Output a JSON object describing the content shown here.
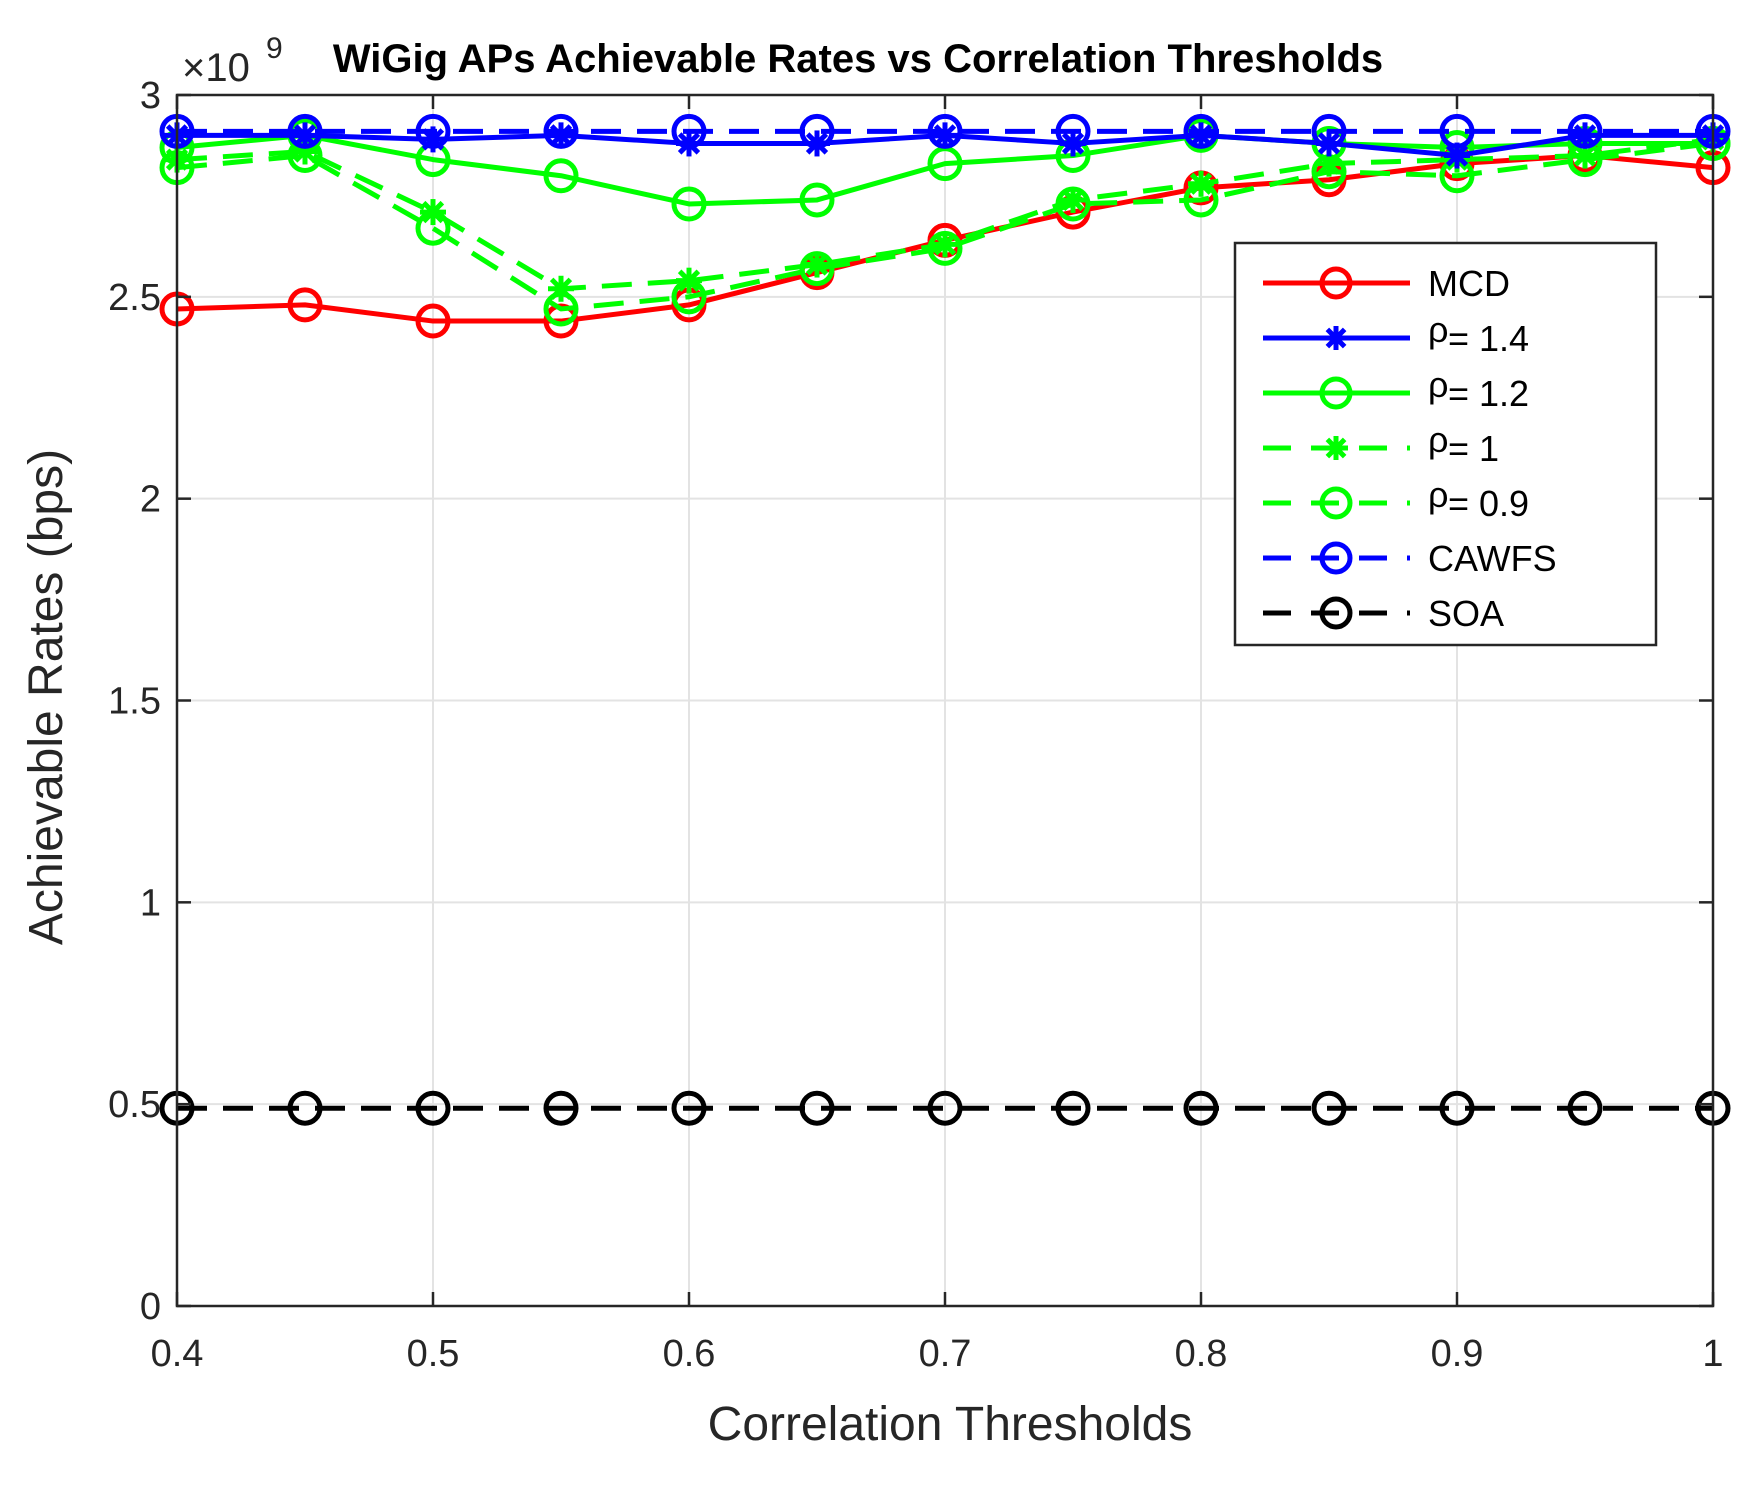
{
  "chart_data": {
    "type": "line",
    "title": "WiGig APs Achievable Rates vs Correlation Thresholds",
    "xlabel": "Correlation Thresholds",
    "ylabel": "Achievable Rates (bps)",
    "y_exponent_prefix": "×10",
    "y_exponent": "9",
    "xlim": [
      0.4,
      1.0
    ],
    "ylim": [
      0,
      3
    ],
    "grid": true,
    "legend_position": "upper-right",
    "x": [
      0.4,
      0.45,
      0.5,
      0.55,
      0.6,
      0.65,
      0.7,
      0.75,
      0.8,
      0.85,
      0.9,
      0.95,
      1.0
    ],
    "x_ticks": [
      {
        "value": 0.4,
        "label": "0.4"
      },
      {
        "value": 0.5,
        "label": "0.5"
      },
      {
        "value": 0.6,
        "label": "0.6"
      },
      {
        "value": 0.7,
        "label": "0.7"
      },
      {
        "value": 0.8,
        "label": "0.8"
      },
      {
        "value": 0.9,
        "label": "0.9"
      },
      {
        "value": 1.0,
        "label": "1"
      }
    ],
    "y_ticks": [
      {
        "value": 0,
        "label": "0"
      },
      {
        "value": 0.5,
        "label": "0.5"
      },
      {
        "value": 1,
        "label": "1"
      },
      {
        "value": 1.5,
        "label": "1.5"
      },
      {
        "value": 2,
        "label": "2"
      },
      {
        "value": 2.5,
        "label": "2.5"
      },
      {
        "value": 3,
        "label": "3"
      }
    ],
    "series": [
      {
        "id": "mcd",
        "legend_symbol": "",
        "legend_text": "MCD",
        "color": "#ff0000",
        "dash": "solid",
        "marker": "circle",
        "values": [
          2.47,
          2.48,
          2.44,
          2.44,
          2.48,
          2.56,
          2.64,
          2.71,
          2.77,
          2.79,
          2.83,
          2.85,
          2.82
        ]
      },
      {
        "id": "rho-1-4",
        "legend_symbol": "ρ",
        "legend_text": "= 1.4",
        "color": "#0000ff",
        "dash": "solid",
        "marker": "asterisk",
        "values": [
          2.9,
          2.9,
          2.89,
          2.9,
          2.88,
          2.88,
          2.9,
          2.88,
          2.9,
          2.88,
          2.85,
          2.9,
          2.9
        ]
      },
      {
        "id": "rho-1-2",
        "legend_symbol": "ρ",
        "legend_text": "= 1.2",
        "color": "#00ff00",
        "dash": "solid",
        "marker": "circle",
        "values": [
          2.87,
          2.9,
          2.84,
          2.8,
          2.73,
          2.74,
          2.83,
          2.85,
          2.9,
          2.88,
          2.87,
          2.88,
          2.88
        ]
      },
      {
        "id": "rho-1",
        "legend_symbol": "ρ",
        "legend_text": "= 1",
        "color": "#00ff00",
        "dash": "dashed",
        "marker": "asterisk",
        "values": [
          2.84,
          2.86,
          2.71,
          2.52,
          2.54,
          2.58,
          2.63,
          2.74,
          2.78,
          2.83,
          2.84,
          2.85,
          2.89
        ]
      },
      {
        "id": "rho-0-9",
        "legend_symbol": "ρ",
        "legend_text": "= 0.9",
        "color": "#00ff00",
        "dash": "dashed",
        "marker": "circle",
        "values": [
          2.82,
          2.85,
          2.67,
          2.47,
          2.5,
          2.57,
          2.62,
          2.73,
          2.74,
          2.81,
          2.8,
          2.84,
          2.88
        ]
      },
      {
        "id": "cawfs",
        "legend_symbol": "",
        "legend_text": "CAWFS",
        "color": "#0000ff",
        "dash": "dashed",
        "marker": "circle",
        "values": [
          2.91,
          2.91,
          2.91,
          2.91,
          2.91,
          2.91,
          2.91,
          2.91,
          2.91,
          2.91,
          2.91,
          2.91,
          2.91
        ]
      },
      {
        "id": "soa",
        "legend_symbol": "",
        "legend_text": "SOA",
        "color": "#000000",
        "dash": "dashed",
        "marker": "circle",
        "values": [
          0.49,
          0.49,
          0.49,
          0.49,
          0.49,
          0.49,
          0.49,
          0.49,
          0.49,
          0.49,
          0.49,
          0.49,
          0.49
        ]
      }
    ]
  }
}
